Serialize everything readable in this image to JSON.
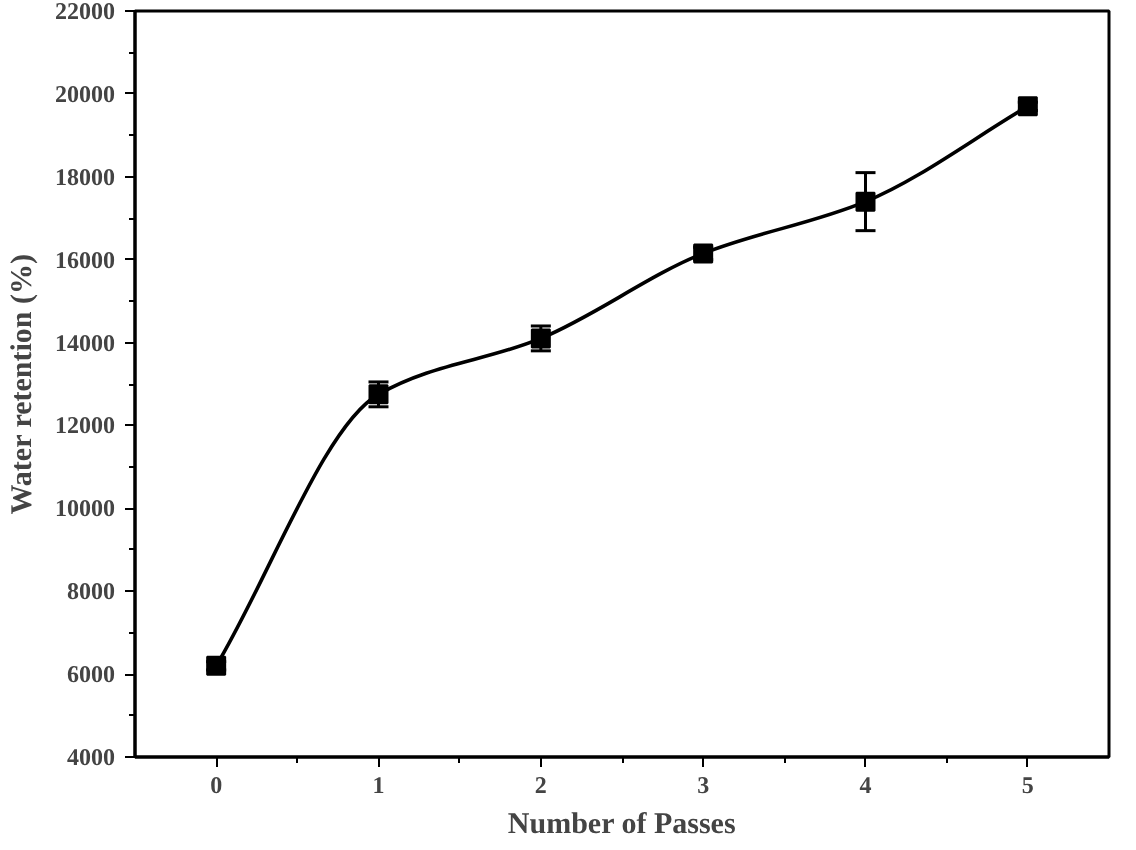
{
  "chart_data": {
    "type": "line",
    "xlabel": "Number of Passes",
    "ylabel": "Water retention (%)",
    "x": [
      0,
      1,
      2,
      3,
      4,
      5
    ],
    "series": [
      {
        "color": "#000000",
        "values": [
          6200,
          12750,
          14100,
          16150,
          17400,
          19700
        ],
        "errors": [
          100,
          300,
          300,
          150,
          700,
          100
        ]
      }
    ],
    "xlim": [
      -0.5,
      5.5
    ],
    "xticks": [
      0,
      1,
      2,
      3,
      4,
      5
    ],
    "ylim": [
      4000,
      22000
    ],
    "yticks": [
      4000,
      6000,
      8000,
      10000,
      12000,
      14000,
      16000,
      18000,
      20000,
      22000
    ],
    "marker": "square",
    "line_style": "solid",
    "grid": false
  }
}
